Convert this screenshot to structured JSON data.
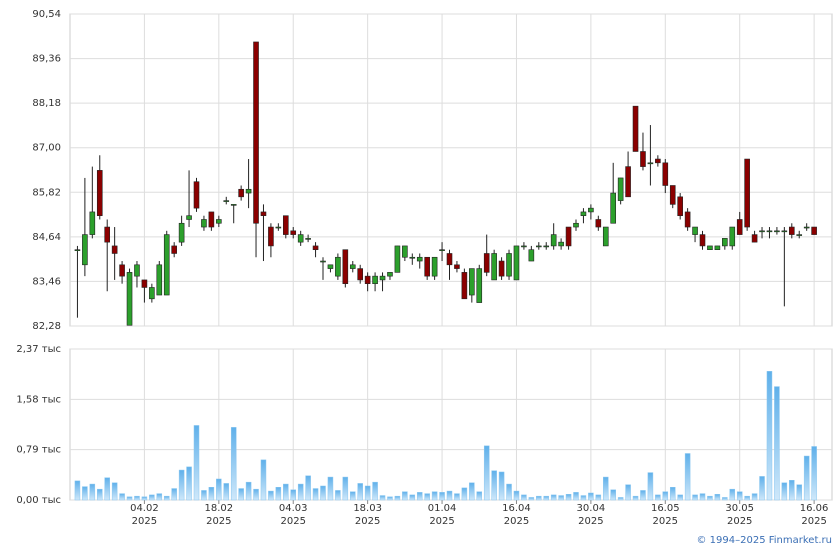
{
  "chart_data": {
    "type": "candlestick",
    "up_color": "#2ca02c",
    "down_color": "#8b0000",
    "volume_color": "#8cc8f0",
    "xlim": [
      -1,
      101
    ],
    "xticks": [
      {
        "value": 9,
        "label": "04.02 2025"
      },
      {
        "value": 19,
        "label": "18.02 2025"
      },
      {
        "value": 29,
        "label": "04.03 2025"
      },
      {
        "value": 39,
        "label": "18.03 2025"
      },
      {
        "value": 49,
        "label": "01.04 2025"
      },
      {
        "value": 59,
        "label": "16.04 2025"
      },
      {
        "value": 69,
        "label": "30.04 2025"
      },
      {
        "value": 79,
        "label": "16.05 2025"
      },
      {
        "value": 89,
        "label": "30.05 2025"
      },
      {
        "value": 99,
        "label": "16.06 2025"
      }
    ],
    "ylim": [
      82.28,
      90.54
    ],
    "yticks": [
      {
        "value": 82.28,
        "label": "82,28"
      },
      {
        "value": 83.46,
        "label": "83,46"
      },
      {
        "value": 84.64,
        "label": "84,64"
      },
      {
        "value": 85.82,
        "label": "85,82"
      },
      {
        "value": 87.0,
        "label": "87,00"
      },
      {
        "value": 88.18,
        "label": "88,18"
      },
      {
        "value": 89.36,
        "label": "89,36"
      },
      {
        "value": 90.54,
        "label": "90,54"
      }
    ],
    "y2lim": [
      0,
      2.37
    ],
    "y2ticks": [
      {
        "value": 0,
        "label": "0,00 тыс"
      },
      {
        "value": 0.79,
        "label": "0,79 тыс"
      },
      {
        "value": 1.58,
        "label": "1,58 тыс"
      },
      {
        "value": 2.37,
        "label": "2,37 тыс"
      }
    ],
    "grid": true,
    "open": [
      84.3,
      83.9,
      84.7,
      86.4,
      84.9,
      84.4,
      83.9,
      82.3,
      83.6,
      83.5,
      83.0,
      83.1,
      83.1,
      84.4,
      84.5,
      85.1,
      86.1,
      84.9,
      85.3,
      85.0,
      85.6,
      85.5,
      85.9,
      85.8,
      89.8,
      85.3,
      84.9,
      84.9,
      85.2,
      84.8,
      84.5,
      84.6,
      84.4,
      84.0,
      83.8,
      83.6,
      84.3,
      83.8,
      83.8,
      83.6,
      83.4,
      83.5,
      83.6,
      83.7,
      84.1,
      84.1,
      84.0,
      84.1,
      83.6,
      84.3,
      84.2,
      83.9,
      83.7,
      83.1,
      82.9,
      84.2,
      83.5,
      84.0,
      83.6,
      83.5,
      84.4,
      84.0,
      84.4,
      84.4,
      84.4,
      84.4,
      84.9,
      84.9,
      85.2,
      85.3,
      85.1,
      84.4,
      85.0,
      85.6,
      86.5,
      88.1,
      86.9,
      86.6,
      86.7,
      86.6,
      86.0,
      85.7,
      85.3,
      84.7,
      84.7,
      84.3,
      84.3,
      84.4,
      84.4,
      85.1,
      86.7,
      84.7,
      84.8,
      84.8,
      84.8,
      84.8,
      84.9,
      84.7,
      84.9,
      84.9
    ],
    "high": [
      84.4,
      86.2,
      86.5,
      86.8,
      85.1,
      84.9,
      84.0,
      83.8,
      84.0,
      83.5,
      83.4,
      84.0,
      84.8,
      84.5,
      85.2,
      86.4,
      86.2,
      85.2,
      85.3,
      85.2,
      85.7,
      85.5,
      86.0,
      86.7,
      89.8,
      85.5,
      85.0,
      85.0,
      85.2,
      84.9,
      84.8,
      84.7,
      84.5,
      84.1,
      83.9,
      84.2,
      84.3,
      84.0,
      83.9,
      83.7,
      83.7,
      83.7,
      83.7,
      84.4,
      84.4,
      84.2,
      84.2,
      84.1,
      84.1,
      84.5,
      84.3,
      84.0,
      83.8,
      83.8,
      83.9,
      84.7,
      84.3,
      84.1,
      84.3,
      84.4,
      84.5,
      84.4,
      84.5,
      84.5,
      85.0,
      84.6,
      84.9,
      85.1,
      85.4,
      85.5,
      85.2,
      84.9,
      86.6,
      86.2,
      86.9,
      88.1,
      87.4,
      87.6,
      86.8,
      86.7,
      86.0,
      85.8,
      85.4,
      84.9,
      84.8,
      84.4,
      84.4,
      84.6,
      84.9,
      85.3,
      86.7,
      84.8,
      84.9,
      84.9,
      84.9,
      84.9,
      85.0,
      84.8,
      85.0,
      84.9
    ],
    "low": [
      82.5,
      83.6,
      84.6,
      85.1,
      83.2,
      83.5,
      83.4,
      82.3,
      83.3,
      82.9,
      82.9,
      83.1,
      83.1,
      84.1,
      84.4,
      84.9,
      85.3,
      84.8,
      84.8,
      84.9,
      85.5,
      85.0,
      85.6,
      85.4,
      84.1,
      84.0,
      84.1,
      84.8,
      84.6,
      84.6,
      84.4,
      84.5,
      84.1,
      83.5,
      83.7,
      83.5,
      83.3,
      83.7,
      83.4,
      83.2,
      83.2,
      83.2,
      83.5,
      83.7,
      84.0,
      83.9,
      83.8,
      83.5,
      83.5,
      84.0,
      83.5,
      83.7,
      83.0,
      82.9,
      82.9,
      83.6,
      83.5,
      83.5,
      83.5,
      83.5,
      84.3,
      84.0,
      84.3,
      84.3,
      84.3,
      84.3,
      84.3,
      84.8,
      85.0,
      85.1,
      84.8,
      84.4,
      85.0,
      85.5,
      85.7,
      86.9,
      86.4,
      86.0,
      86.5,
      85.8,
      85.4,
      85.1,
      84.8,
      84.5,
      84.3,
      84.3,
      84.3,
      84.3,
      84.3,
      84.7,
      84.8,
      84.5,
      84.6,
      84.6,
      84.7,
      82.8,
      84.6,
      84.6,
      84.8,
      84.7
    ],
    "close": [
      84.3,
      84.7,
      85.3,
      85.2,
      84.5,
      84.2,
      83.6,
      83.7,
      83.9,
      83.3,
      83.3,
      83.9,
      84.7,
      84.2,
      85.0,
      85.2,
      85.4,
      85.1,
      84.9,
      85.1,
      85.6,
      85.5,
      85.7,
      85.9,
      85.0,
      85.2,
      84.4,
      84.9,
      84.7,
      84.7,
      84.7,
      84.6,
      84.3,
      84.0,
      83.9,
      84.1,
      83.4,
      83.9,
      83.5,
      83.4,
      83.6,
      83.6,
      83.7,
      84.4,
      84.4,
      84.1,
      84.1,
      83.6,
      84.1,
      84.3,
      83.9,
      83.8,
      83.0,
      83.8,
      83.8,
      83.7,
      84.2,
      83.6,
      84.2,
      84.4,
      84.4,
      84.3,
      84.4,
      84.4,
      84.7,
      84.5,
      84.4,
      85.0,
      85.3,
      85.4,
      84.9,
      84.9,
      85.8,
      86.2,
      85.7,
      86.9,
      86.5,
      86.6,
      86.6,
      86.0,
      85.5,
      85.2,
      84.9,
      84.9,
      84.4,
      84.4,
      84.4,
      84.6,
      84.9,
      84.7,
      84.9,
      84.5,
      84.8,
      84.8,
      84.8,
      84.8,
      84.7,
      84.7,
      84.9,
      84.7
    ],
    "volume": [
      0.3,
      0.21,
      0.25,
      0.17,
      0.35,
      0.27,
      0.1,
      0.05,
      0.06,
      0.05,
      0.08,
      0.1,
      0.06,
      0.18,
      0.47,
      0.52,
      1.17,
      0.15,
      0.2,
      0.33,
      0.26,
      1.14,
      0.18,
      0.28,
      0.17,
      0.63,
      0.14,
      0.2,
      0.25,
      0.16,
      0.25,
      0.38,
      0.18,
      0.22,
      0.36,
      0.15,
      0.36,
      0.13,
      0.26,
      0.22,
      0.28,
      0.07,
      0.05,
      0.06,
      0.13,
      0.08,
      0.12,
      0.1,
      0.13,
      0.12,
      0.14,
      0.1,
      0.19,
      0.27,
      0.13,
      0.85,
      0.46,
      0.44,
      0.25,
      0.14,
      0.08,
      0.04,
      0.06,
      0.06,
      0.08,
      0.07,
      0.09,
      0.12,
      0.07,
      0.11,
      0.08,
      0.36,
      0.16,
      0.04,
      0.24,
      0.06,
      0.15,
      0.43,
      0.08,
      0.13,
      0.2,
      0.08,
      0.73,
      0.08,
      0.1,
      0.06,
      0.09,
      0.04,
      0.17,
      0.13,
      0.06,
      0.1,
      0.37,
      2.02,
      1.78,
      0.27,
      0.31,
      0.24,
      0.69,
      0.84
    ]
  },
  "copyright": "© 1994–2025 Finmarket.ru"
}
